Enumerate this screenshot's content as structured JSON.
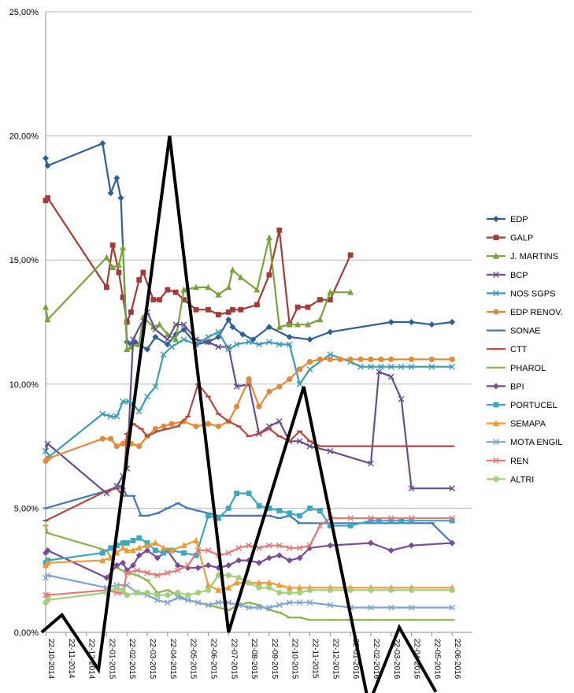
{
  "chart_data": {
    "type": "line",
    "title": "",
    "xlabel": "",
    "ylabel": "",
    "ylim": [
      0,
      25
    ],
    "y_ticks": [
      "0,00%",
      "5,00%",
      "10,00%",
      "15,00%",
      "20,00%",
      "25,00%"
    ],
    "y_tick_values": [
      0,
      5,
      10,
      15,
      20,
      25
    ],
    "x_ticks": [
      "22-10-2014",
      "22-11-2014",
      "22-12-2014",
      "22-01-2015",
      "22-02-2015",
      "22-03-2015",
      "22-04-2015",
      "22-05-2015",
      "22-06-2015",
      "22-07-2015",
      "22-08-2015",
      "22-09-2015",
      "22-10-2015",
      "22-11-2015",
      "22-12-2015",
      "22-01-2016",
      "22-02-2016",
      "22-03-2016",
      "22-04-2016",
      "22-05-2016",
      "22-06-2016"
    ],
    "x_unit": "months since 22-10-2014",
    "xlim": [
      0,
      21
    ],
    "legend_position": "right",
    "series": [
      {
        "name": "EDP",
        "color": "#2f5f98",
        "marker": "diamond",
        "x": [
          0,
          0.1,
          2.8,
          3.2,
          3.5,
          3.7,
          4.0,
          4.2,
          4.4,
          5.0,
          5.4,
          6.0,
          6.4,
          6.8,
          7.4,
          8.0,
          8.5,
          9.0,
          9.2,
          9.7,
          10.2,
          11.0,
          12.0,
          13.0,
          14.0,
          17.0,
          18.0,
          19.0,
          20.0
        ],
        "y": [
          19.1,
          18.8,
          19.7,
          17.7,
          18.3,
          17.5,
          11.7,
          11.6,
          11.7,
          11.4,
          11.9,
          11.6,
          12.0,
          12.2,
          11.6,
          11.7,
          11.9,
          12.6,
          12.3,
          12.0,
          11.8,
          12.3,
          11.9,
          11.8,
          12.1,
          12.5,
          12.5,
          12.4,
          12.5
        ]
      },
      {
        "name": "GALP",
        "color": "#a33b38",
        "marker": "square",
        "x": [
          0,
          0.1,
          3.0,
          3.3,
          3.6,
          3.8,
          4.0,
          4.2,
          4.6,
          4.8,
          5.3,
          5.6,
          6.0,
          6.4,
          6.8,
          7.4,
          8.0,
          8.5,
          9.0,
          9.2,
          9.6,
          10.4,
          11.0,
          11.5,
          12.0,
          12.4,
          12.9,
          13.5,
          14.0,
          15.0
        ],
        "y": [
          17.4,
          17.5,
          13.9,
          15.6,
          14.5,
          13.5,
          12.5,
          12.9,
          14.2,
          14.5,
          13.4,
          13.4,
          13.8,
          13.7,
          13.4,
          13.0,
          13.0,
          12.8,
          12.9,
          13.0,
          13.0,
          13.2,
          14.4,
          16.2,
          12.4,
          13.1,
          13.1,
          13.4,
          13.4,
          15.2
        ]
      },
      {
        "name": "J. MARTINS",
        "color": "#77a33a",
        "marker": "triangle",
        "x": [
          0,
          0.1,
          3.0,
          3.3,
          3.6,
          3.8,
          4.0,
          4.2,
          4.6,
          4.8,
          5.3,
          5.6,
          6.0,
          6.4,
          6.8,
          7.4,
          8.0,
          8.5,
          9.0,
          9.2,
          9.6,
          10.4,
          11.0,
          11.5,
          12.0,
          12.4,
          12.9,
          13.5,
          14.0,
          15.0
        ],
        "y": [
          13.1,
          12.6,
          15.1,
          14.7,
          14.8,
          15.5,
          11.4,
          11.5,
          11.6,
          12.7,
          12.3,
          12.4,
          12.0,
          11.8,
          13.8,
          13.9,
          13.9,
          13.6,
          13.9,
          14.6,
          14.3,
          13.8,
          15.9,
          12.3,
          12.4,
          12.4,
          12.4,
          12.6,
          13.7,
          13.7
        ]
      },
      {
        "name": "BCP",
        "color": "#6a4d8c",
        "marker": "x",
        "x": [
          0,
          0.1,
          3.0,
          3.5,
          3.8,
          4.0,
          4.3,
          5.0,
          5.4,
          6.0,
          6.4,
          6.8,
          7.4,
          8.0,
          8.5,
          9.0,
          9.4,
          10.0,
          10.5,
          11.0,
          11.5,
          12.0,
          12.5,
          13.0,
          14.0,
          16.0,
          16.4,
          17.0,
          17.5,
          18.0,
          20.0
        ],
        "y": [
          7.3,
          7.6,
          5.6,
          5.9,
          6.3,
          6.6,
          11.8,
          12.9,
          12.2,
          11.8,
          12.4,
          12.4,
          11.8,
          11.7,
          11.5,
          11.5,
          9.9,
          10.0,
          8.0,
          8.3,
          8.5,
          7.7,
          7.7,
          7.5,
          7.3,
          6.8,
          10.5,
          10.3,
          9.4,
          5.8,
          5.8
        ]
      },
      {
        "name": "NOS SGPS",
        "color": "#3a9bb4",
        "marker": "x",
        "x": [
          0,
          0.2,
          2.8,
          3.2,
          3.5,
          3.8,
          4.1,
          4.3,
          4.6,
          5.0,
          5.4,
          5.8,
          6.2,
          6.8,
          7.4,
          8.0,
          8.5,
          9.0,
          9.4,
          10.0,
          10.5,
          11.0,
          11.5,
          12.0,
          12.5,
          13.0,
          14.0,
          15.0,
          15.5,
          16.0,
          16.5,
          17.0,
          17.5,
          18.0,
          19.0,
          20.0
        ],
        "y": [
          7.3,
          7.1,
          8.8,
          8.7,
          8.7,
          9.3,
          9.3,
          9.2,
          8.9,
          9.5,
          9.9,
          11.2,
          11.5,
          11.8,
          11.6,
          11.9,
          12.1,
          11.4,
          11.6,
          11.7,
          11.6,
          11.7,
          11.6,
          11.6,
          10.0,
          10.6,
          11.2,
          10.9,
          10.7,
          10.7,
          10.7,
          10.7,
          10.7,
          10.7,
          10.7,
          10.7
        ]
      },
      {
        "name": "EDP RENOV.",
        "color": "#e08a3a",
        "marker": "circle",
        "x": [
          0,
          0.1,
          2.8,
          3.2,
          3.5,
          3.8,
          4.0,
          4.2,
          4.6,
          5.0,
          5.4,
          5.8,
          6.2,
          6.8,
          7.4,
          8.0,
          8.5,
          9.0,
          9.4,
          10.0,
          10.5,
          11.0,
          11.5,
          12.0,
          12.5,
          13.0,
          13.5,
          14.0,
          14.5,
          15.0,
          15.5,
          16.0,
          16.5,
          17.0,
          18.0,
          19.0,
          20.0
        ],
        "y": [
          6.9,
          7.0,
          7.8,
          7.8,
          7.5,
          7.6,
          7.7,
          7.6,
          7.5,
          7.9,
          8.2,
          8.3,
          8.4,
          8.5,
          8.3,
          8.4,
          8.3,
          8.5,
          9.1,
          10.2,
          9.1,
          9.7,
          9.9,
          10.2,
          10.6,
          10.9,
          11.0,
          11.0,
          11.0,
          11.0,
          11.0,
          11.0,
          11.0,
          11.0,
          11.0,
          11.0,
          11.0
        ]
      },
      {
        "name": "SONAE",
        "color": "#4478b5",
        "marker": "dash",
        "x": [
          0,
          3.0,
          3.6,
          3.8,
          4.0,
          4.3,
          4.7,
          5.0,
          5.5,
          6.0,
          6.5,
          7.0,
          7.5,
          8.0,
          8.5,
          9.0,
          9.5,
          10.0,
          10.5,
          11.0,
          11.5,
          12.0,
          12.5,
          13.0,
          14.0,
          15.0,
          16.0,
          17.0,
          18.0,
          19.0,
          20.0
        ],
        "y": [
          5.0,
          5.7,
          5.9,
          5.8,
          5.5,
          5.5,
          4.7,
          4.7,
          4.8,
          5.0,
          5.2,
          5.0,
          4.9,
          4.8,
          4.7,
          4.7,
          4.7,
          4.7,
          4.7,
          4.7,
          4.6,
          4.7,
          4.4,
          4.4,
          4.4,
          4.4,
          4.4,
          4.4,
          4.4,
          4.4,
          3.6
        ]
      },
      {
        "name": "CTT",
        "color": "#b04a45",
        "marker": "dash",
        "x": [
          0,
          3.0,
          3.5,
          3.8,
          4.0,
          4.3,
          4.7,
          5.0,
          5.5,
          6.0,
          6.5,
          7.0,
          7.5,
          8.0,
          8.5,
          9.0,
          9.5,
          10.0,
          10.5,
          11.0,
          11.5,
          12.0,
          12.5,
          13.0,
          13.5,
          14.0,
          15.0,
          16.0,
          17.0,
          18.0,
          20.0
        ],
        "y": [
          4.5,
          5.7,
          5.8,
          5.5,
          8.0,
          8.4,
          8.2,
          7.9,
          8.1,
          8.2,
          8.3,
          8.7,
          10.0,
          9.5,
          8.8,
          8.5,
          8.3,
          7.9,
          8.0,
          8.2,
          7.9,
          7.7,
          8.1,
          7.7,
          7.5,
          7.5,
          7.5,
          7.5,
          7.5,
          7.5,
          7.5
        ]
      },
      {
        "name": "PHAROL",
        "color": "#8cb34e",
        "marker": "dash",
        "x": [
          0,
          0.1,
          3.0,
          3.5,
          4.0,
          4.5,
          5.0,
          5.5,
          6.0,
          6.5,
          7.0,
          7.5,
          8.0,
          8.5,
          9.0,
          9.5,
          10.0,
          10.5,
          11.0,
          11.5,
          12.0,
          12.5,
          13.0,
          14.0,
          15.0,
          16.0,
          17.0,
          18.0,
          20.0
        ],
        "y": [
          4.3,
          4.0,
          3.3,
          2.6,
          2.4,
          2.3,
          2.1,
          1.6,
          1.7,
          1.5,
          1.3,
          1.2,
          1.1,
          1.0,
          0.9,
          1.1,
          1.2,
          1.1,
          0.9,
          0.8,
          0.6,
          0.6,
          0.5,
          0.5,
          0.5,
          0.5,
          0.5,
          0.5,
          0.5
        ]
      },
      {
        "name": "BPI",
        "color": "#7b4a99",
        "marker": "diamond",
        "x": [
          0,
          0.1,
          3.0,
          3.5,
          3.8,
          4.0,
          4.3,
          4.6,
          5.0,
          5.5,
          6.0,
          6.5,
          7.0,
          7.5,
          8.0,
          8.5,
          9.0,
          9.5,
          10.0,
          10.5,
          11.0,
          11.5,
          12.0,
          12.5,
          13.0,
          14.0,
          16.0,
          17.0,
          18.0,
          20.0
        ],
        "y": [
          3.2,
          3.3,
          2.2,
          2.7,
          2.8,
          2.5,
          2.7,
          3.1,
          3.3,
          3.0,
          3.3,
          2.7,
          2.6,
          2.6,
          2.7,
          2.6,
          2.7,
          2.9,
          2.9,
          2.8,
          3.0,
          3.1,
          2.9,
          3.0,
          3.4,
          3.5,
          3.6,
          3.3,
          3.5,
          3.6
        ]
      },
      {
        "name": "PORTUCEL",
        "color": "#3aa8c0",
        "marker": "square",
        "x": [
          0,
          0.1,
          2.8,
          3.2,
          3.5,
          3.8,
          4.0,
          4.3,
          4.6,
          5.0,
          5.4,
          5.8,
          6.2,
          6.8,
          7.4,
          8.0,
          8.5,
          9.0,
          9.4,
          10.0,
          10.5,
          11.0,
          11.5,
          12.0,
          12.5,
          13.0,
          13.5,
          14.0,
          15.0,
          16.0,
          16.4,
          17.0,
          17.5,
          18.0,
          20.0
        ],
        "y": [
          2.8,
          2.9,
          3.2,
          3.4,
          3.5,
          3.6,
          3.6,
          3.7,
          3.8,
          3.6,
          3.3,
          3.2,
          3.3,
          3.2,
          3.1,
          4.7,
          4.6,
          5.0,
          5.6,
          5.6,
          5.1,
          5.0,
          4.9,
          4.8,
          4.7,
          5.0,
          4.9,
          4.3,
          4.3,
          4.5,
          4.5,
          4.5,
          4.5,
          4.5,
          4.5
        ]
      },
      {
        "name": "SEMAPA",
        "color": "#ef9a38",
        "marker": "triangle",
        "x": [
          0,
          0.1,
          2.8,
          3.2,
          3.5,
          3.8,
          4.0,
          4.3,
          4.6,
          5.0,
          5.4,
          5.8,
          6.2,
          6.8,
          7.4,
          8.0,
          8.5,
          9.0,
          9.4,
          10.0,
          10.5,
          11.0,
          11.5,
          12.0,
          12.5,
          13.0,
          14.0,
          15.0,
          16.0,
          17.0,
          18.0,
          20.0
        ],
        "y": [
          2.7,
          2.8,
          2.9,
          3.0,
          3.2,
          3.4,
          3.3,
          3.3,
          3.4,
          3.5,
          3.6,
          3.4,
          3.3,
          3.5,
          3.7,
          1.9,
          1.7,
          1.8,
          2.0,
          2.0,
          2.0,
          2.0,
          1.9,
          1.8,
          1.8,
          1.8,
          1.8,
          1.8,
          1.8,
          1.8,
          1.8,
          1.8
        ]
      },
      {
        "name": "MOTA ENGIL",
        "color": "#7fa3d4",
        "marker": "x",
        "x": [
          0,
          0.1,
          3.0,
          3.5,
          4.0,
          4.5,
          5.0,
          5.5,
          6.0,
          6.5,
          7.0,
          7.5,
          8.0,
          8.5,
          9.0,
          9.5,
          10.0,
          10.5,
          11.0,
          11.5,
          12.0,
          12.5,
          13.0,
          14.0,
          15.0,
          16.0,
          17.0,
          18.0,
          20.0
        ],
        "y": [
          2.2,
          2.3,
          1.8,
          1.9,
          1.9,
          1.6,
          1.5,
          1.3,
          1.2,
          1.4,
          1.3,
          1.2,
          1.1,
          1.2,
          1.2,
          1.1,
          1.0,
          1.0,
          1.0,
          1.1,
          1.2,
          1.2,
          1.2,
          1.1,
          1.0,
          1.0,
          1.0,
          1.0,
          1.0
        ]
      },
      {
        "name": "REN",
        "color": "#e07b7a",
        "marker": "x",
        "x": [
          0,
          0.1,
          3.0,
          3.5,
          3.8,
          4.0,
          4.5,
          5.0,
          5.5,
          6.0,
          6.5,
          7.0,
          7.5,
          8.0,
          8.5,
          9.0,
          9.5,
          10.0,
          10.5,
          11.0,
          11.5,
          12.0,
          12.5,
          13.0,
          13.5,
          14.0,
          15.0,
          16.0,
          17.0,
          18.0,
          20.0
        ],
        "y": [
          1.5,
          1.5,
          1.7,
          1.6,
          1.6,
          2.4,
          2.5,
          2.4,
          2.3,
          2.4,
          2.5,
          2.7,
          3.3,
          3.3,
          3.1,
          3.2,
          3.4,
          3.5,
          3.4,
          3.5,
          3.5,
          3.4,
          3.4,
          3.5,
          4.3,
          4.6,
          4.6,
          4.6,
          4.6,
          4.6,
          4.6
        ]
      },
      {
        "name": "ALTRI",
        "color": "#a6cf7d",
        "marker": "circle",
        "x": [
          0,
          0.1,
          3.0,
          3.5,
          3.8,
          4.0,
          4.5,
          5.0,
          5.5,
          6.0,
          6.5,
          7.0,
          7.5,
          8.0,
          8.5,
          9.0,
          9.5,
          10.0,
          10.5,
          11.0,
          11.5,
          12.0,
          12.5,
          13.0,
          14.0,
          15.0,
          16.0,
          17.0,
          18.0,
          20.0
        ],
        "y": [
          1.2,
          1.3,
          1.6,
          1.8,
          1.7,
          1.5,
          1.6,
          1.6,
          1.5,
          1.5,
          1.6,
          1.5,
          1.6,
          1.7,
          2.3,
          2.3,
          2.2,
          2.0,
          1.8,
          1.8,
          1.6,
          1.6,
          1.6,
          1.7,
          1.7,
          1.7,
          1.7,
          1.7,
          1.7,
          1.7
        ]
      }
    ],
    "overlay_line": {
      "name": "black zigzag annotation",
      "color": "#000000",
      "x": [
        -0.2,
        0.8,
        2.6,
        6.1,
        9.0,
        12.7,
        15.9,
        17.4,
        19.2
      ],
      "y": [
        0.0,
        0.7,
        -1.5,
        20.0,
        0.0,
        9.9,
        -2.9,
        0.2,
        -2.4
      ]
    }
  }
}
